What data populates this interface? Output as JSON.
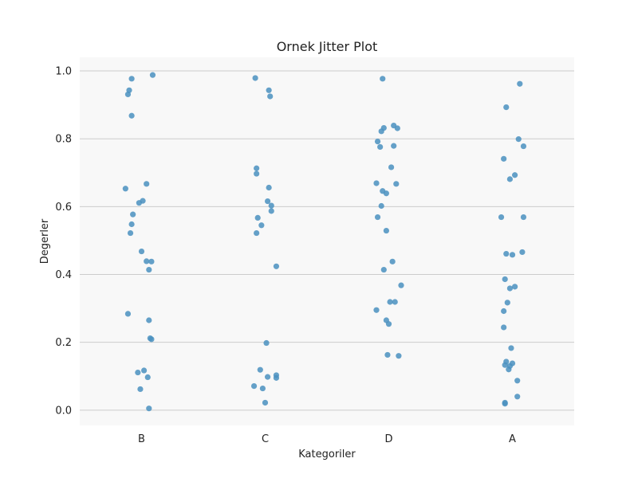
{
  "chart_data": {
    "type": "scatter",
    "subtype": "jitter",
    "title": "Ornek Jitter Plot",
    "xlabel": "Kategoriler",
    "ylabel": "Degerler",
    "categories": [
      "B",
      "C",
      "D",
      "A"
    ],
    "ylim": [
      -0.045,
      1.04
    ],
    "yticks": [
      "0.0",
      "0.2",
      "0.4",
      "0.6",
      "0.8",
      "1.0"
    ],
    "grid": "horizontal",
    "colors": {
      "point": "#4a90c0",
      "plot_background": "#f8f8f8",
      "grid": "#cccccc"
    },
    "points": [
      {
        "category": "B",
        "jitter": -0.08,
        "y": 0.977
      },
      {
        "category": "B",
        "jitter": 0.09,
        "y": 0.988
      },
      {
        "category": "B",
        "jitter": -0.1,
        "y": 0.943
      },
      {
        "category": "B",
        "jitter": -0.11,
        "y": 0.931
      },
      {
        "category": "B",
        "jitter": -0.08,
        "y": 0.868
      },
      {
        "category": "B",
        "jitter": 0.04,
        "y": 0.667
      },
      {
        "category": "B",
        "jitter": -0.13,
        "y": 0.653
      },
      {
        "category": "B",
        "jitter": 0.01,
        "y": 0.617
      },
      {
        "category": "B",
        "jitter": -0.02,
        "y": 0.611
      },
      {
        "category": "B",
        "jitter": -0.07,
        "y": 0.577
      },
      {
        "category": "B",
        "jitter": -0.08,
        "y": 0.548
      },
      {
        "category": "B",
        "jitter": -0.09,
        "y": 0.522
      },
      {
        "category": "B",
        "jitter": 0.0,
        "y": 0.468
      },
      {
        "category": "B",
        "jitter": 0.04,
        "y": 0.439
      },
      {
        "category": "B",
        "jitter": 0.08,
        "y": 0.438
      },
      {
        "category": "B",
        "jitter": 0.06,
        "y": 0.414
      },
      {
        "category": "B",
        "jitter": -0.11,
        "y": 0.284
      },
      {
        "category": "B",
        "jitter": 0.06,
        "y": 0.265
      },
      {
        "category": "B",
        "jitter": 0.07,
        "y": 0.212
      },
      {
        "category": "B",
        "jitter": 0.08,
        "y": 0.209
      },
      {
        "category": "B",
        "jitter": 0.02,
        "y": 0.117
      },
      {
        "category": "B",
        "jitter": -0.03,
        "y": 0.111
      },
      {
        "category": "B",
        "jitter": 0.05,
        "y": 0.097
      },
      {
        "category": "B",
        "jitter": -0.01,
        "y": 0.062
      },
      {
        "category": "B",
        "jitter": 0.06,
        "y": 0.005
      },
      {
        "category": "C",
        "jitter": -0.08,
        "y": 0.979
      },
      {
        "category": "C",
        "jitter": 0.03,
        "y": 0.943
      },
      {
        "category": "C",
        "jitter": 0.04,
        "y": 0.925
      },
      {
        "category": "C",
        "jitter": -0.07,
        "y": 0.713
      },
      {
        "category": "C",
        "jitter": -0.07,
        "y": 0.697
      },
      {
        "category": "C",
        "jitter": 0.03,
        "y": 0.656
      },
      {
        "category": "C",
        "jitter": 0.02,
        "y": 0.616
      },
      {
        "category": "C",
        "jitter": 0.05,
        "y": 0.603
      },
      {
        "category": "C",
        "jitter": 0.05,
        "y": 0.587
      },
      {
        "category": "C",
        "jitter": -0.06,
        "y": 0.567
      },
      {
        "category": "C",
        "jitter": -0.03,
        "y": 0.545
      },
      {
        "category": "C",
        "jitter": -0.07,
        "y": 0.522
      },
      {
        "category": "C",
        "jitter": 0.09,
        "y": 0.424
      },
      {
        "category": "C",
        "jitter": 0.01,
        "y": 0.198
      },
      {
        "category": "C",
        "jitter": -0.04,
        "y": 0.119
      },
      {
        "category": "C",
        "jitter": 0.09,
        "y": 0.103
      },
      {
        "category": "C",
        "jitter": 0.02,
        "y": 0.098
      },
      {
        "category": "C",
        "jitter": 0.09,
        "y": 0.095
      },
      {
        "category": "C",
        "jitter": -0.09,
        "y": 0.071
      },
      {
        "category": "C",
        "jitter": -0.02,
        "y": 0.064
      },
      {
        "category": "C",
        "jitter": 0.0,
        "y": 0.022
      },
      {
        "category": "D",
        "jitter": -0.05,
        "y": 0.977
      },
      {
        "category": "D",
        "jitter": 0.04,
        "y": 0.839
      },
      {
        "category": "D",
        "jitter": -0.04,
        "y": 0.832
      },
      {
        "category": "D",
        "jitter": 0.07,
        "y": 0.831
      },
      {
        "category": "D",
        "jitter": -0.06,
        "y": 0.822
      },
      {
        "category": "D",
        "jitter": -0.09,
        "y": 0.792
      },
      {
        "category": "D",
        "jitter": -0.07,
        "y": 0.776
      },
      {
        "category": "D",
        "jitter": 0.04,
        "y": 0.779
      },
      {
        "category": "D",
        "jitter": 0.02,
        "y": 0.716
      },
      {
        "category": "D",
        "jitter": -0.1,
        "y": 0.669
      },
      {
        "category": "D",
        "jitter": 0.06,
        "y": 0.667
      },
      {
        "category": "D",
        "jitter": -0.05,
        "y": 0.646
      },
      {
        "category": "D",
        "jitter": -0.02,
        "y": 0.639
      },
      {
        "category": "D",
        "jitter": -0.06,
        "y": 0.602
      },
      {
        "category": "D",
        "jitter": -0.09,
        "y": 0.569
      },
      {
        "category": "D",
        "jitter": -0.02,
        "y": 0.529
      },
      {
        "category": "D",
        "jitter": 0.03,
        "y": 0.438
      },
      {
        "category": "D",
        "jitter": -0.04,
        "y": 0.414
      },
      {
        "category": "D",
        "jitter": 0.1,
        "y": 0.368
      },
      {
        "category": "D",
        "jitter": 0.01,
        "y": 0.319
      },
      {
        "category": "D",
        "jitter": 0.05,
        "y": 0.319
      },
      {
        "category": "D",
        "jitter": -0.1,
        "y": 0.295
      },
      {
        "category": "D",
        "jitter": -0.02,
        "y": 0.265
      },
      {
        "category": "D",
        "jitter": 0.0,
        "y": 0.254
      },
      {
        "category": "D",
        "jitter": -0.01,
        "y": 0.163
      },
      {
        "category": "D",
        "jitter": 0.08,
        "y": 0.16
      },
      {
        "category": "A",
        "jitter": 0.06,
        "y": 0.962
      },
      {
        "category": "A",
        "jitter": -0.05,
        "y": 0.893
      },
      {
        "category": "A",
        "jitter": 0.05,
        "y": 0.799
      },
      {
        "category": "A",
        "jitter": 0.09,
        "y": 0.778
      },
      {
        "category": "A",
        "jitter": -0.07,
        "y": 0.741
      },
      {
        "category": "A",
        "jitter": 0.02,
        "y": 0.693
      },
      {
        "category": "A",
        "jitter": -0.02,
        "y": 0.681
      },
      {
        "category": "A",
        "jitter": -0.09,
        "y": 0.569
      },
      {
        "category": "A",
        "jitter": 0.09,
        "y": 0.569
      },
      {
        "category": "A",
        "jitter": -0.05,
        "y": 0.461
      },
      {
        "category": "A",
        "jitter": 0.0,
        "y": 0.458
      },
      {
        "category": "A",
        "jitter": 0.08,
        "y": 0.466
      },
      {
        "category": "A",
        "jitter": -0.06,
        "y": 0.386
      },
      {
        "category": "A",
        "jitter": -0.02,
        "y": 0.359
      },
      {
        "category": "A",
        "jitter": 0.02,
        "y": 0.364
      },
      {
        "category": "A",
        "jitter": -0.04,
        "y": 0.317
      },
      {
        "category": "A",
        "jitter": -0.07,
        "y": 0.292
      },
      {
        "category": "A",
        "jitter": -0.07,
        "y": 0.244
      },
      {
        "category": "A",
        "jitter": -0.01,
        "y": 0.183
      },
      {
        "category": "A",
        "jitter": -0.05,
        "y": 0.143
      },
      {
        "category": "A",
        "jitter": 0.0,
        "y": 0.138
      },
      {
        "category": "A",
        "jitter": -0.06,
        "y": 0.133
      },
      {
        "category": "A",
        "jitter": -0.02,
        "y": 0.13
      },
      {
        "category": "A",
        "jitter": -0.03,
        "y": 0.12
      },
      {
        "category": "A",
        "jitter": 0.04,
        "y": 0.087
      },
      {
        "category": "A",
        "jitter": 0.04,
        "y": 0.04
      },
      {
        "category": "A",
        "jitter": -0.06,
        "y": 0.022
      },
      {
        "category": "A",
        "jitter": -0.06,
        "y": 0.019
      }
    ]
  }
}
